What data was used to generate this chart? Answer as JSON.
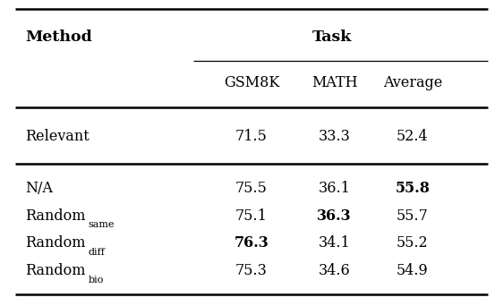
{
  "title": "Task",
  "col_headers": [
    "GSM8K",
    "MATH",
    "Average"
  ],
  "row_labels": [
    [
      "Relevant",
      ""
    ],
    [
      "N/A",
      ""
    ],
    [
      "Random",
      "same"
    ],
    [
      "Random",
      "diff"
    ],
    [
      "Random",
      "bio"
    ]
  ],
  "data": [
    [
      "71.5",
      "33.3",
      "52.4"
    ],
    [
      "75.5",
      "36.1",
      "55.8"
    ],
    [
      "75.1",
      "36.3",
      "55.7"
    ],
    [
      "76.3",
      "34.1",
      "55.2"
    ],
    [
      "75.3",
      "34.6",
      "54.9"
    ]
  ],
  "bold": [
    [
      false,
      false,
      false
    ],
    [
      false,
      false,
      true
    ],
    [
      false,
      true,
      false
    ],
    [
      true,
      false,
      false
    ],
    [
      false,
      false,
      false
    ]
  ],
  "background_color": "#ffffff",
  "font_size": 11.5,
  "sub_font_size": 8.0,
  "figsize": [
    5.62,
    3.42
  ],
  "dpi": 100
}
